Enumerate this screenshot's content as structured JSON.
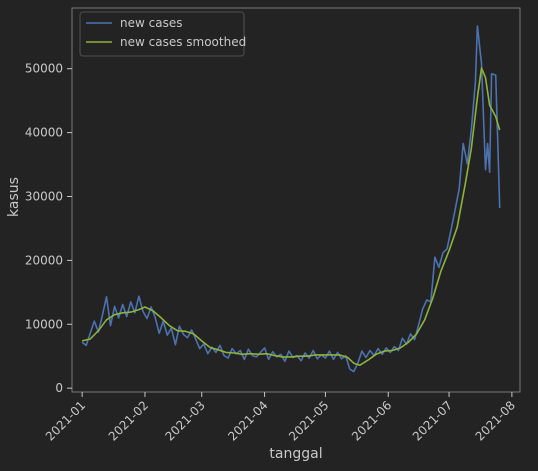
{
  "chart_data": {
    "type": "line",
    "xlabel": "tanggal",
    "ylabel": "kasus",
    "x_tick_labels": [
      "2021-01",
      "2021-02",
      "2021-03",
      "2021-04",
      "2021-05",
      "2021-06",
      "2021-07",
      "2021-08"
    ],
    "y_ticks": [
      0,
      10000,
      20000,
      30000,
      40000,
      50000
    ],
    "ylim": [
      -600,
      59500
    ],
    "xlim": [
      "2020-12-27",
      "2021-08-05"
    ],
    "legend_placement": "top-left",
    "grid": false,
    "colors": {
      "new_cases": "#4c72b0",
      "smoothed": "#8cb33a",
      "background": "#232323",
      "text": "#c8c8c8"
    },
    "series": [
      {
        "name": "new cases",
        "color": "#4c72b0",
        "points": [
          [
            "2021-01-01",
            7200
          ],
          [
            "2021-01-03",
            6700
          ],
          [
            "2021-01-05",
            8600
          ],
          [
            "2021-01-07",
            10500
          ],
          [
            "2021-01-09",
            8800
          ],
          [
            "2021-01-11",
            11400
          ],
          [
            "2021-01-13",
            14300
          ],
          [
            "2021-01-15",
            9800
          ],
          [
            "2021-01-17",
            12800
          ],
          [
            "2021-01-19",
            11000
          ],
          [
            "2021-01-21",
            13100
          ],
          [
            "2021-01-23",
            11200
          ],
          [
            "2021-01-25",
            13500
          ],
          [
            "2021-01-27",
            11800
          ],
          [
            "2021-01-29",
            14400
          ],
          [
            "2021-01-31",
            12000
          ],
          [
            "2021-02-02",
            10900
          ],
          [
            "2021-02-04",
            12700
          ],
          [
            "2021-02-06",
            11100
          ],
          [
            "2021-02-08",
            8600
          ],
          [
            "2021-02-10",
            10500
          ],
          [
            "2021-02-12",
            8300
          ],
          [
            "2021-02-14",
            9400
          ],
          [
            "2021-02-16",
            6800
          ],
          [
            "2021-02-18",
            9700
          ],
          [
            "2021-02-20",
            8400
          ],
          [
            "2021-02-22",
            7900
          ],
          [
            "2021-02-24",
            9100
          ],
          [
            "2021-02-26",
            7700
          ],
          [
            "2021-02-28",
            6200
          ],
          [
            "2021-03-02",
            6900
          ],
          [
            "2021-03-04",
            5400
          ],
          [
            "2021-03-06",
            6400
          ],
          [
            "2021-03-08",
            5600
          ],
          [
            "2021-03-10",
            6700
          ],
          [
            "2021-03-12",
            5100
          ],
          [
            "2021-03-14",
            4700
          ],
          [
            "2021-03-16",
            6200
          ],
          [
            "2021-03-18",
            5400
          ],
          [
            "2021-03-20",
            5900
          ],
          [
            "2021-03-22",
            4500
          ],
          [
            "2021-03-24",
            6100
          ],
          [
            "2021-03-26",
            5100
          ],
          [
            "2021-03-28",
            4900
          ],
          [
            "2021-03-30",
            5600
          ],
          [
            "2021-04-01",
            6300
          ],
          [
            "2021-04-03",
            4500
          ],
          [
            "2021-04-05",
            5700
          ],
          [
            "2021-04-07",
            4900
          ],
          [
            "2021-04-09",
            5300
          ],
          [
            "2021-04-11",
            4200
          ],
          [
            "2021-04-13",
            5800
          ],
          [
            "2021-04-15",
            4800
          ],
          [
            "2021-04-17",
            5100
          ],
          [
            "2021-04-19",
            4300
          ],
          [
            "2021-04-21",
            5500
          ],
          [
            "2021-04-23",
            4700
          ],
          [
            "2021-04-25",
            5900
          ],
          [
            "2021-04-27",
            4600
          ],
          [
            "2021-04-29",
            5200
          ],
          [
            "2021-05-01",
            4700
          ],
          [
            "2021-05-03",
            5800
          ],
          [
            "2021-05-05",
            4500
          ],
          [
            "2021-05-07",
            5600
          ],
          [
            "2021-05-09",
            4600
          ],
          [
            "2021-05-11",
            5100
          ],
          [
            "2021-05-13",
            3000
          ],
          [
            "2021-05-15",
            2600
          ],
          [
            "2021-05-17",
            3900
          ],
          [
            "2021-05-19",
            5800
          ],
          [
            "2021-05-21",
            4800
          ],
          [
            "2021-05-23",
            5900
          ],
          [
            "2021-05-25",
            5100
          ],
          [
            "2021-05-27",
            6200
          ],
          [
            "2021-05-29",
            5300
          ],
          [
            "2021-05-31",
            6300
          ],
          [
            "2021-06-02",
            5600
          ],
          [
            "2021-06-04",
            6500
          ],
          [
            "2021-06-06",
            5900
          ],
          [
            "2021-06-08",
            7800
          ],
          [
            "2021-06-10",
            6900
          ],
          [
            "2021-06-12",
            8500
          ],
          [
            "2021-06-14",
            7600
          ],
          [
            "2021-06-16",
            9900
          ],
          [
            "2021-06-18",
            12400
          ],
          [
            "2021-06-20",
            13800
          ],
          [
            "2021-06-22",
            13500
          ],
          [
            "2021-06-24",
            20500
          ],
          [
            "2021-06-26",
            18900
          ],
          [
            "2021-06-28",
            21200
          ],
          [
            "2021-06-30",
            21800
          ],
          [
            "2021-07-02",
            24800
          ],
          [
            "2021-07-04",
            27900
          ],
          [
            "2021-07-06",
            31200
          ],
          [
            "2021-07-08",
            38300
          ],
          [
            "2021-07-10",
            35100
          ],
          [
            "2021-07-12",
            40400
          ],
          [
            "2021-07-14",
            47900
          ],
          [
            "2021-07-15",
            56700
          ],
          [
            "2021-07-17",
            50800
          ],
          [
            "2021-07-19",
            34200
          ],
          [
            "2021-07-20",
            38300
          ],
          [
            "2021-07-21",
            33800
          ],
          [
            "2021-07-22",
            49200
          ],
          [
            "2021-07-24",
            49000
          ],
          [
            "2021-07-25",
            38900
          ],
          [
            "2021-07-26",
            28200
          ]
        ]
      },
      {
        "name": "new cases smoothed",
        "color": "#8cb33a",
        "points": [
          [
            "2021-01-01",
            7400
          ],
          [
            "2021-01-05",
            7700
          ],
          [
            "2021-01-09",
            9000
          ],
          [
            "2021-01-13",
            10700
          ],
          [
            "2021-01-17",
            11500
          ],
          [
            "2021-01-21",
            11800
          ],
          [
            "2021-01-25",
            11900
          ],
          [
            "2021-01-29",
            12300
          ],
          [
            "2021-02-01",
            12700
          ],
          [
            "2021-02-05",
            12100
          ],
          [
            "2021-02-09",
            11000
          ],
          [
            "2021-02-13",
            9800
          ],
          [
            "2021-02-17",
            9000
          ],
          [
            "2021-02-21",
            8900
          ],
          [
            "2021-02-25",
            8500
          ],
          [
            "2021-03-01",
            7400
          ],
          [
            "2021-03-05",
            6400
          ],
          [
            "2021-03-09",
            6000
          ],
          [
            "2021-03-13",
            5600
          ],
          [
            "2021-03-17",
            5500
          ],
          [
            "2021-03-21",
            5300
          ],
          [
            "2021-03-25",
            5400
          ],
          [
            "2021-03-29",
            5300
          ],
          [
            "2021-04-02",
            5400
          ],
          [
            "2021-04-06",
            5100
          ],
          [
            "2021-04-10",
            4900
          ],
          [
            "2021-04-14",
            4900
          ],
          [
            "2021-04-18",
            5000
          ],
          [
            "2021-04-22",
            5000
          ],
          [
            "2021-04-26",
            5200
          ],
          [
            "2021-04-30",
            5200
          ],
          [
            "2021-05-04",
            5200
          ],
          [
            "2021-05-08",
            5200
          ],
          [
            "2021-05-12",
            4800
          ],
          [
            "2021-05-15",
            3900
          ],
          [
            "2021-05-18",
            3600
          ],
          [
            "2021-05-22",
            4400
          ],
          [
            "2021-05-26",
            5300
          ],
          [
            "2021-05-30",
            5800
          ],
          [
            "2021-06-03",
            5900
          ],
          [
            "2021-06-07",
            6300
          ],
          [
            "2021-06-11",
            7200
          ],
          [
            "2021-06-15",
            8500
          ],
          [
            "2021-06-19",
            10700
          ],
          [
            "2021-06-23",
            14100
          ],
          [
            "2021-06-27",
            18300
          ],
          [
            "2021-07-01",
            21500
          ],
          [
            "2021-07-05",
            25200
          ],
          [
            "2021-07-09",
            32000
          ],
          [
            "2021-07-12",
            37500
          ],
          [
            "2021-07-15",
            45500
          ],
          [
            "2021-07-17",
            50100
          ],
          [
            "2021-07-19",
            48600
          ],
          [
            "2021-07-21",
            44300
          ],
          [
            "2021-07-24",
            42500
          ],
          [
            "2021-07-26",
            40400
          ]
        ]
      }
    ]
  }
}
